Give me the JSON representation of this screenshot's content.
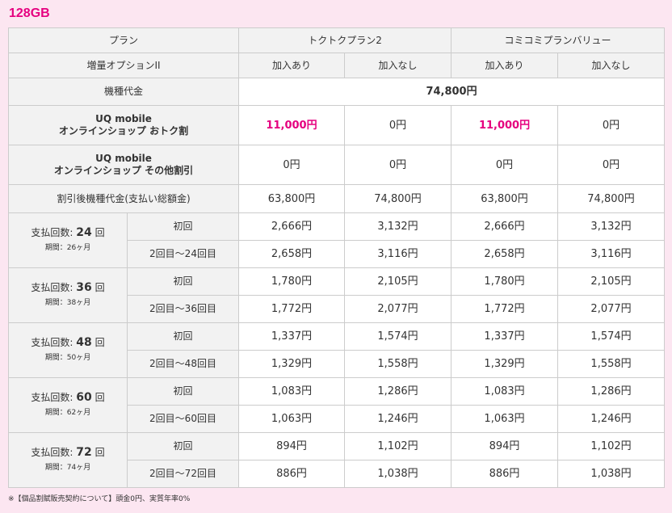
{
  "title": "128GB",
  "header": {
    "plan_label": "プラン",
    "plan1": "トクトクプラン2",
    "plan2": "コミコミプランバリュー",
    "option_label": "増量オプションII",
    "with": "加入あり",
    "without": "加入なし"
  },
  "device_price": {
    "label": "機種代金",
    "value": "74,800円"
  },
  "discount1": {
    "line1": "UQ mobile",
    "line2": "オンラインショップ おトク割",
    "values": [
      "11,000円",
      "0円",
      "11,000円",
      "0円"
    ]
  },
  "discount2": {
    "line1": "UQ mobile",
    "line2": "オンラインショップ その他割引",
    "values": [
      "0円",
      "0円",
      "0円",
      "0円"
    ]
  },
  "after_discount": {
    "label": "割引後機種代金(支払い総額金)",
    "values": [
      "63,800円",
      "74,800円",
      "63,800円",
      "74,800円"
    ]
  },
  "installments": [
    {
      "prefix": "支払回数:",
      "count": "24",
      "suffix": "回",
      "period": "期間：26ヶ月",
      "first_label": "初回",
      "rest_label": "2回目〜24回目",
      "first": [
        "2,666円",
        "3,132円",
        "2,666円",
        "3,132円"
      ],
      "rest": [
        "2,658円",
        "3,116円",
        "2,658円",
        "3,116円"
      ]
    },
    {
      "prefix": "支払回数:",
      "count": "36",
      "suffix": "回",
      "period": "期間：38ヶ月",
      "first_label": "初回",
      "rest_label": "2回目〜36回目",
      "first": [
        "1,780円",
        "2,105円",
        "1,780円",
        "2,105円"
      ],
      "rest": [
        "1,772円",
        "2,077円",
        "1,772円",
        "2,077円"
      ]
    },
    {
      "prefix": "支払回数:",
      "count": "48",
      "suffix": "回",
      "period": "期間：50ヶ月",
      "first_label": "初回",
      "rest_label": "2回目〜48回目",
      "first": [
        "1,337円",
        "1,574円",
        "1,337円",
        "1,574円"
      ],
      "rest": [
        "1,329円",
        "1,558円",
        "1,329円",
        "1,558円"
      ]
    },
    {
      "prefix": "支払回数:",
      "count": "60",
      "suffix": "回",
      "period": "期間：62ヶ月",
      "first_label": "初回",
      "rest_label": "2回目〜60回目",
      "first": [
        "1,083円",
        "1,286円",
        "1,083円",
        "1,286円"
      ],
      "rest": [
        "1,063円",
        "1,246円",
        "1,063円",
        "1,246円"
      ]
    },
    {
      "prefix": "支払回数:",
      "count": "72",
      "suffix": "回",
      "period": "期間：74ヶ月",
      "first_label": "初回",
      "rest_label": "2回目〜72回目",
      "first": [
        "894円",
        "1,102円",
        "894円",
        "1,102円"
      ],
      "rest": [
        "886円",
        "1,038円",
        "886円",
        "1,038円"
      ]
    }
  ],
  "note": "※【個品割賦販売契約について】頭金0円、実質年率0%",
  "colors": {
    "accent": "#e5007f",
    "background": "#fce6f1",
    "header_bg": "#f2f2f2"
  }
}
